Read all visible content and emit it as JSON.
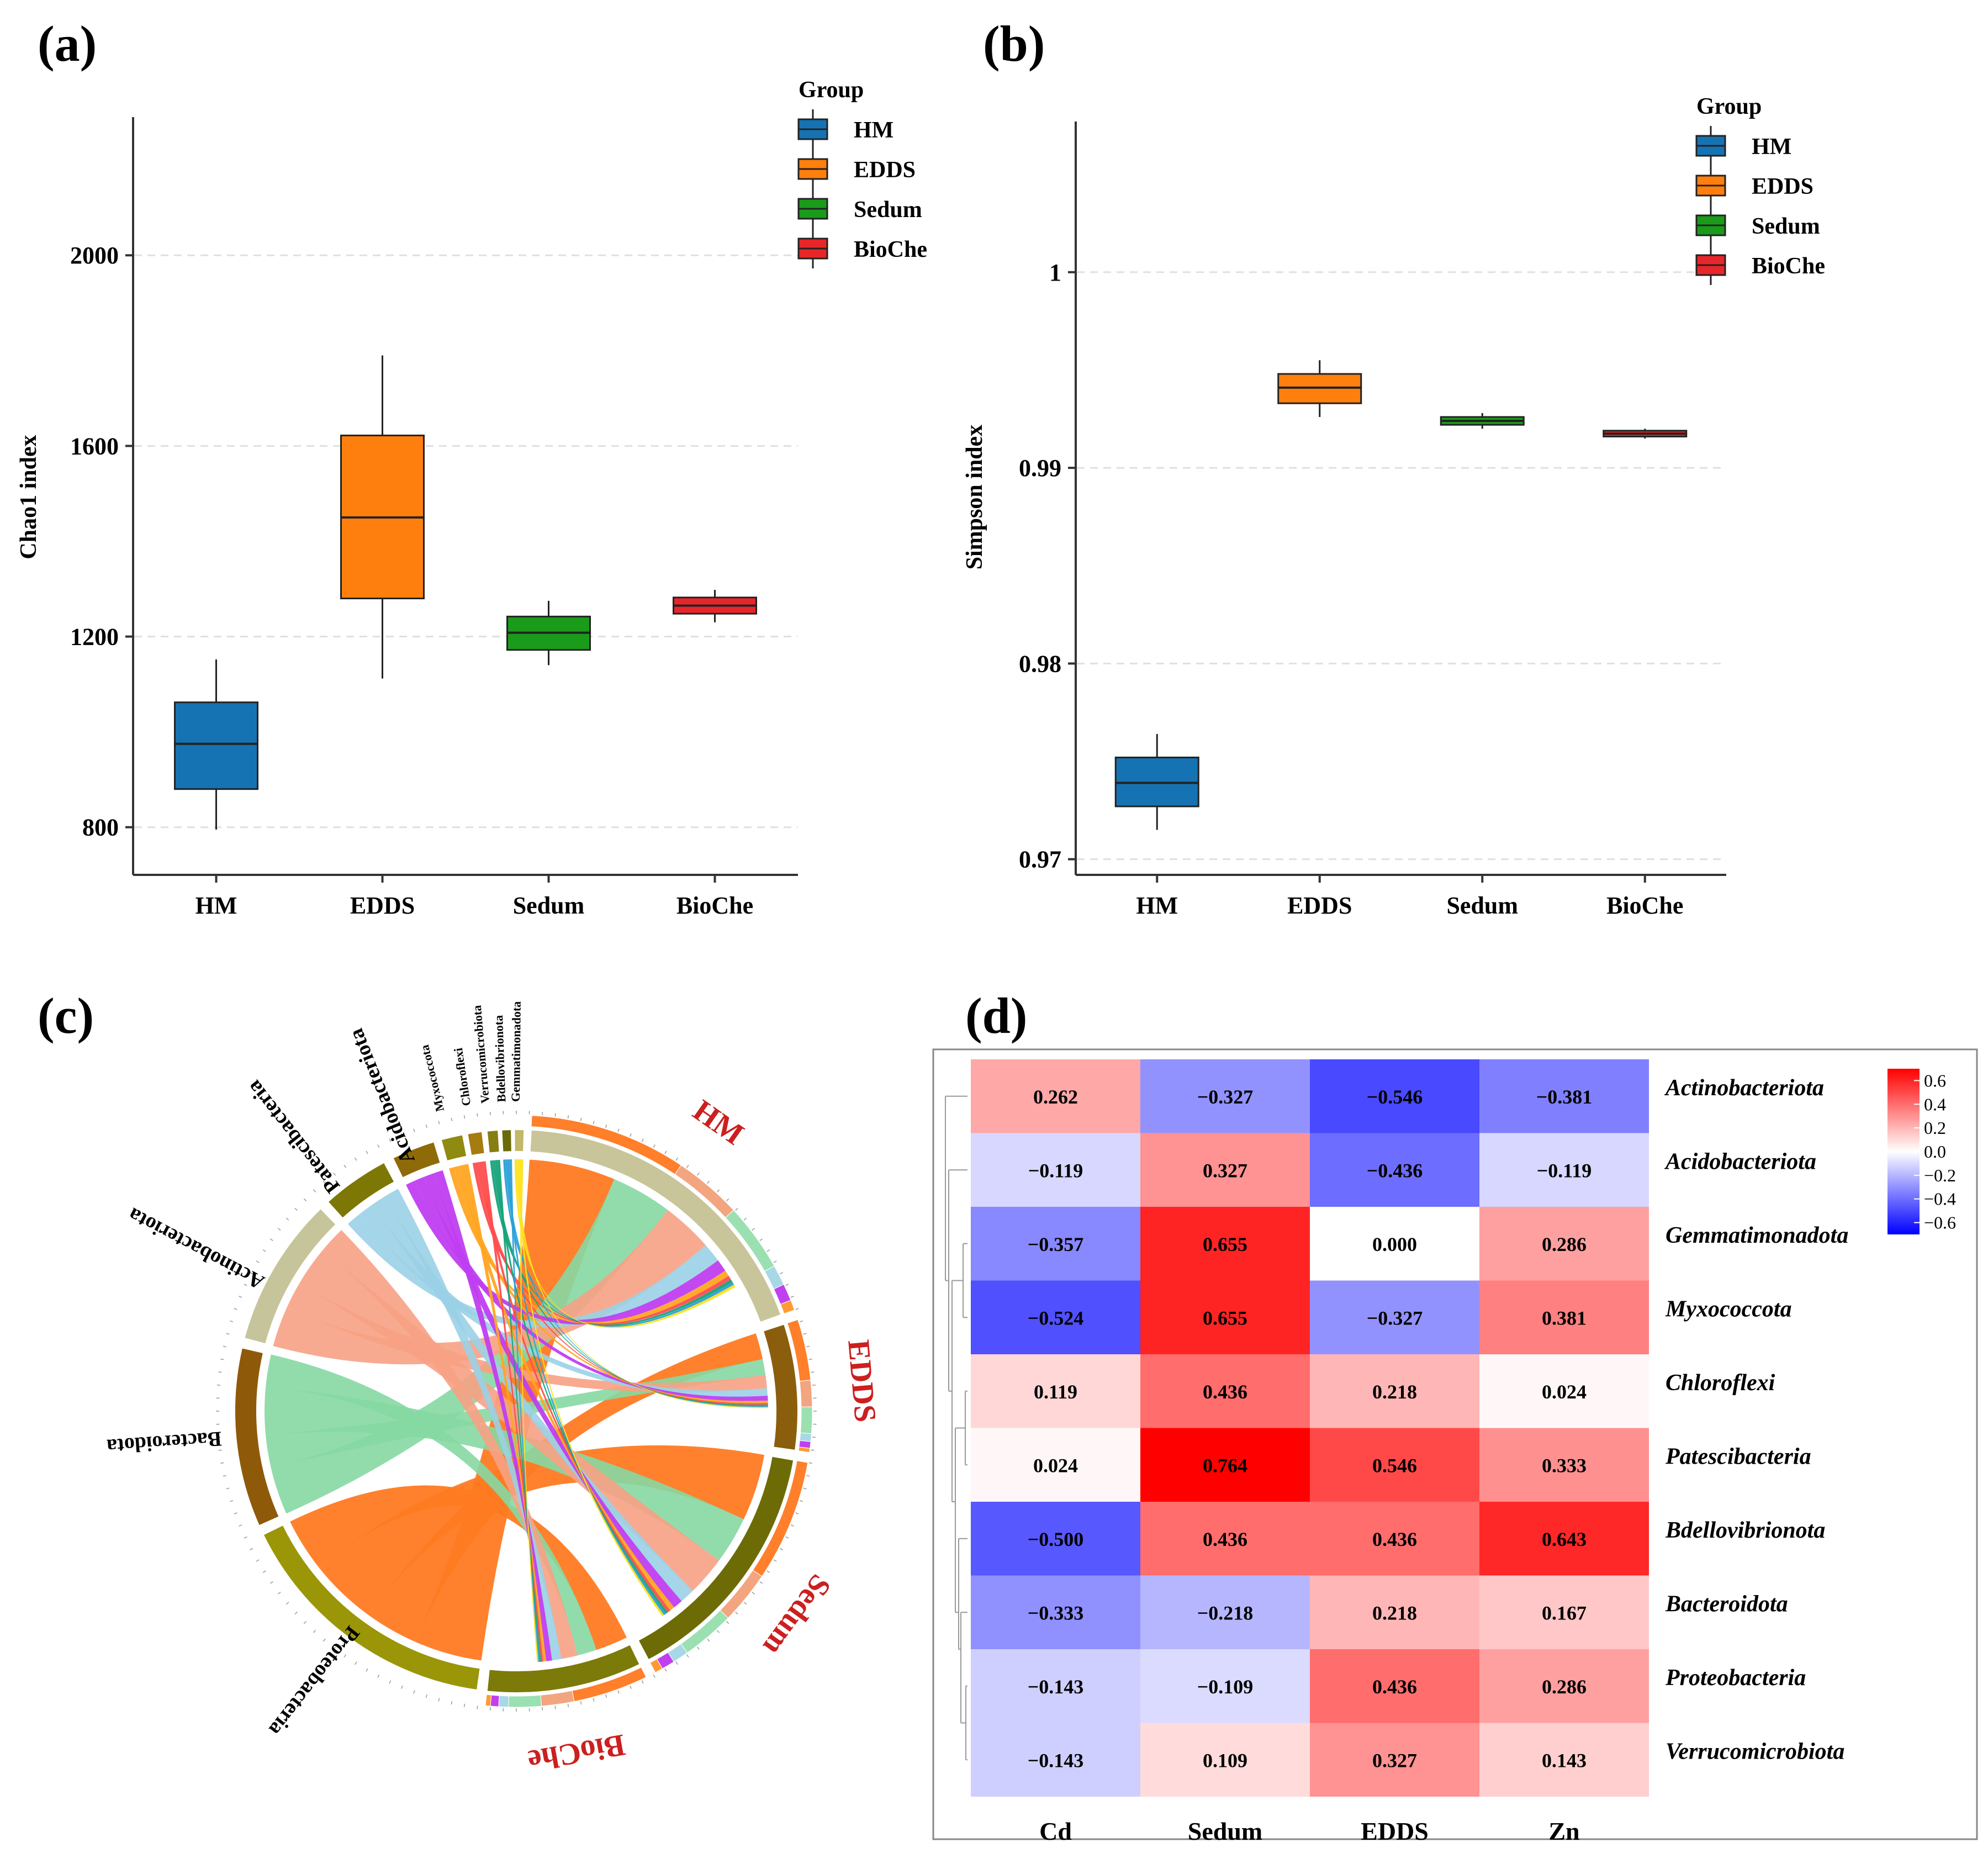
{
  "chart_data": [
    {
      "panel": "(a)",
      "type": "box",
      "ylabel": "Chao1 index",
      "xlabel": "",
      "ylim": [
        700,
        2290
      ],
      "yticks": [
        "800",
        "1200",
        "1600",
        "2000"
      ],
      "legend": {
        "title": "Group",
        "position": "top-right"
      },
      "categories": [
        "HM",
        "EDDS",
        "Sedum",
        "BioChe"
      ],
      "colors": [
        "#1673b3",
        "#ff7f0e",
        "#1a9b1a",
        "#e8262a"
      ],
      "boxes": [
        {
          "name": "HM",
          "min": 795,
          "q1": 880,
          "median": 975,
          "q3": 1062,
          "max": 1152
        },
        {
          "name": "EDDS",
          "min": 1112,
          "q1": 1280,
          "median": 1450,
          "q3": 1622,
          "max": 1790
        },
        {
          "name": "Sedum",
          "min": 1140,
          "q1": 1172,
          "median": 1208,
          "q3": 1242,
          "max": 1275
        },
        {
          "name": "BioChe",
          "min": 1230,
          "q1": 1248,
          "median": 1265,
          "q3": 1282,
          "max": 1298
        }
      ]
    },
    {
      "panel": "(b)",
      "type": "box",
      "ylabel": "Simpson index",
      "xlabel": "",
      "ylim": [
        0.9692,
        1.0077
      ],
      "yticks": [
        "0.97",
        "0.98",
        "0.99",
        "1"
      ],
      "legend": {
        "title": "Group",
        "position": "top-right"
      },
      "categories": [
        "HM",
        "EDDS",
        "Sedum",
        "BioChe"
      ],
      "colors": [
        "#1673b3",
        "#ff7f0e",
        "#1a9b1a",
        "#e8262a"
      ],
      "boxes": [
        {
          "name": "HM",
          "min": 0.9715,
          "q1": 0.9727,
          "median": 0.9739,
          "q3": 0.9752,
          "max": 0.9764
        },
        {
          "name": "EDDS",
          "min": 0.9926,
          "q1": 0.9933,
          "median": 0.9941,
          "q3": 0.9948,
          "max": 0.9955
        },
        {
          "name": "Sedum",
          "min": 0.992,
          "q1": 0.9922,
          "median": 0.9924,
          "q3": 0.9926,
          "max": 0.9928
        },
        {
          "name": "BioChe",
          "min": 0.9915,
          "q1": 0.9916,
          "median": 0.99175,
          "q3": 0.9919,
          "max": 0.992
        }
      ]
    },
    {
      "panel": "(c)",
      "type": "chord",
      "groups": [
        "HM",
        "EDDS",
        "Sedum",
        "BioChe"
      ],
      "phyla_labeled": [
        "Acidobacteriota",
        "Patescibacteria",
        "Actinobacteriota",
        "Bacteroidota",
        "Proteobacteria"
      ],
      "phyla_small": [
        "Myxococcota",
        "Chloroflexi",
        "Verrucomicrobiota",
        "Bdellovibrionota",
        "Gemmatimonadota"
      ]
    },
    {
      "panel": "(d)",
      "type": "heatmap",
      "columns": [
        "Cd",
        "Sedum",
        "EDDS",
        "Zn"
      ],
      "rows": [
        "Actinobacteriota",
        "Acidobacteriota",
        "Gemmatimonadota",
        "Myxococcota",
        "Chloroflexi",
        "Patescibacteria",
        "Bdellovibrionota",
        "Bacteroidota",
        "Proteobacteria",
        "Verrucomicrobiota"
      ],
      "values": [
        [
          0.262,
          -0.327,
          -0.546,
          -0.381
        ],
        [
          -0.119,
          0.327,
          -0.436,
          -0.119
        ],
        [
          -0.357,
          0.655,
          0.0,
          0.286
        ],
        [
          -0.524,
          0.655,
          -0.327,
          0.381
        ],
        [
          0.119,
          0.436,
          0.218,
          0.024
        ],
        [
          0.024,
          0.764,
          0.546,
          0.333
        ],
        [
          -0.5,
          0.436,
          0.436,
          0.643
        ],
        [
          -0.333,
          -0.218,
          0.218,
          0.167
        ],
        [
          -0.143,
          -0.109,
          0.436,
          0.286
        ],
        [
          -0.143,
          0.109,
          0.327,
          0.143
        ]
      ],
      "labels": [
        [
          "0.262",
          "−0.327",
          "−0.546",
          "−0.381"
        ],
        [
          "−0.119",
          "0.327",
          "−0.436",
          "−0.119"
        ],
        [
          "−0.357",
          "0.655",
          "0.000",
          "0.286"
        ],
        [
          "−0.524",
          "0.655",
          "−0.327",
          "0.381"
        ],
        [
          "0.119",
          "0.436",
          "0.218",
          "0.024"
        ],
        [
          "0.024",
          "0.764",
          "0.546",
          "0.333"
        ],
        [
          "−0.500",
          "0.436",
          "0.436",
          "0.643"
        ],
        [
          "−0.333",
          "−0.218",
          "0.218",
          "0.167"
        ],
        [
          "−0.143",
          "−0.109",
          "0.436",
          "0.286"
        ],
        [
          "−0.143",
          "0.109",
          "0.327",
          "0.143"
        ]
      ],
      "colorbar": {
        "range": [
          -0.7,
          0.7
        ],
        "ticks": [
          0.6,
          0.4,
          0.2,
          0.0,
          -0.2,
          -0.4,
          -0.6
        ],
        "tick_labels": [
          "0.6",
          "0.4",
          "0.2",
          "0.0",
          "−0.2",
          "−0.4",
          "−0.6"
        ]
      }
    }
  ]
}
